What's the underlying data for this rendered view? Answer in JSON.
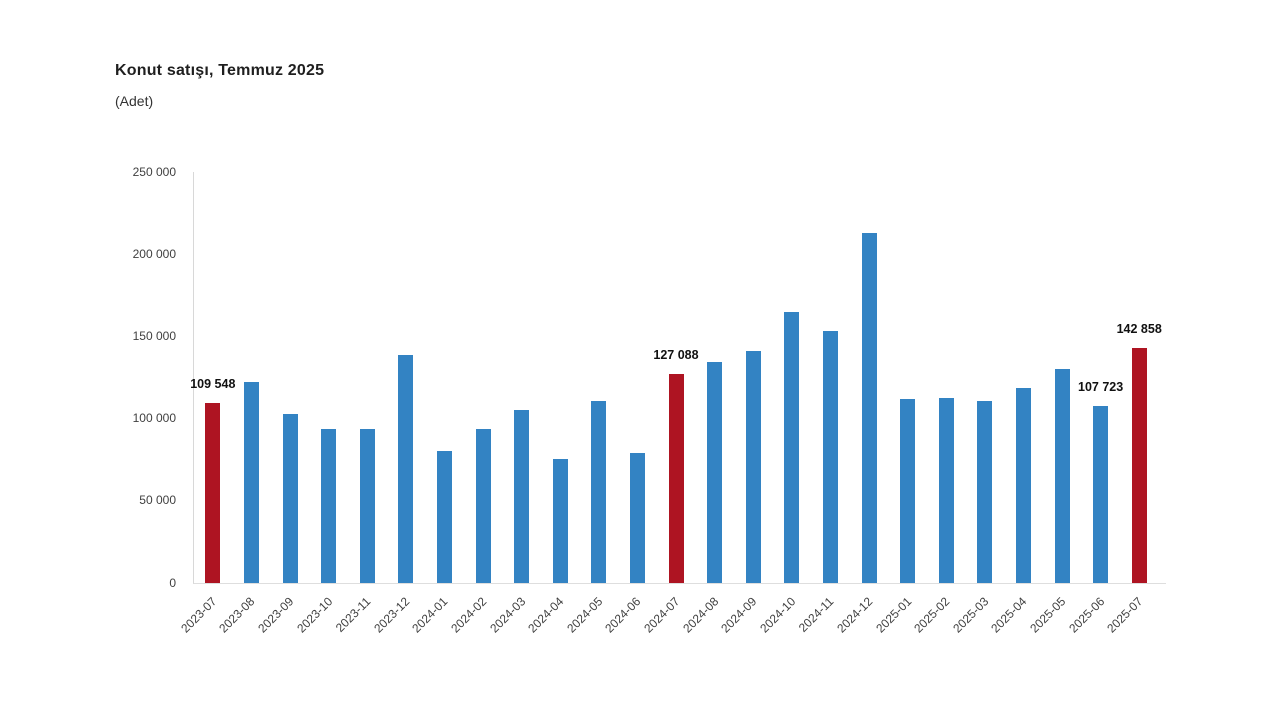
{
  "title": "Konut satışı, Temmuz 2025",
  "subtitle": "(Adet)",
  "colors": {
    "bar_default": "#3383c3",
    "bar_highlight": "#ae1422",
    "axis_line": "#d8d8d8",
    "tick_text": "#404040",
    "title_text": "#1f1f1f",
    "value_label_text": "#111111",
    "background": "#ffffff"
  },
  "chart_data": {
    "type": "bar",
    "title": "Konut satışı, Temmuz 2025",
    "subtitle": "(Adet)",
    "xlabel": "",
    "ylabel": "",
    "categories": [
      "2023-07",
      "2023-08",
      "2023-09",
      "2023-10",
      "2023-11",
      "2023-12",
      "2024-01",
      "2024-02",
      "2024-03",
      "2024-04",
      "2024-05",
      "2024-06",
      "2024-07",
      "2024-08",
      "2024-09",
      "2024-10",
      "2024-11",
      "2024-12",
      "2025-01",
      "2025-02",
      "2025-03",
      "2025-04",
      "2025-05",
      "2025-06",
      "2025-07"
    ],
    "values": [
      109548,
      122091,
      102656,
      93761,
      93514,
      138577,
      80308,
      93902,
      105476,
      75569,
      110588,
      79313,
      127088,
      134155,
      140919,
      165138,
      153014,
      212637,
      112173,
      112818,
      110795,
      118359,
      130025,
      107723,
      142858
    ],
    "highlighted_categories": [
      "2023-07",
      "2024-07",
      "2025-07"
    ],
    "value_labels": {
      "2023-07": "109 548",
      "2024-07": "127 088",
      "2025-06": "107 723",
      "2025-07": "142 858"
    },
    "ylim": [
      0,
      250000
    ],
    "ytick_step": 50000,
    "ytick_labels": [
      "0",
      "50 000",
      "100 000",
      "150 000",
      "200 000",
      "250 000"
    ],
    "grid": false,
    "legend": false
  }
}
